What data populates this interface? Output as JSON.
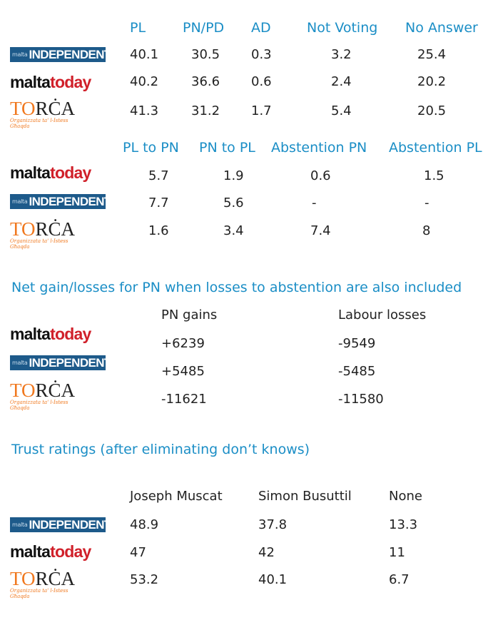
{
  "logos": {
    "independent": {
      "small": "malta",
      "big": "INDEPENDENT"
    },
    "maltatoday": {
      "part1": "malta",
      "part2": "today"
    },
    "torca": {
      "to": "TO",
      "rca": "RĊA",
      "tagline": "Organizzata ta' l-Istess Għaqda"
    }
  },
  "table1": {
    "headers": [
      "PL",
      "PN/PD",
      "AD",
      "Not Voting",
      "No Answer"
    ],
    "rows": [
      {
        "source": "independent",
        "values": [
          "40.1",
          "30.5",
          "0.3",
          "3.2",
          "25.4"
        ]
      },
      {
        "source": "maltatoday",
        "values": [
          "40.2",
          "36.6",
          "0.6",
          "2.4",
          "20.2"
        ]
      },
      {
        "source": "torca",
        "values": [
          "41.3",
          "31.2",
          "1.7",
          "5.4",
          "20.5"
        ]
      }
    ]
  },
  "table2": {
    "headers": [
      "PL to PN",
      "PN to PL",
      "Abstention PN",
      "Abstention PL"
    ],
    "rows": [
      {
        "source": "maltatoday",
        "values": [
          "5.7",
          "1.9",
          "0.6",
          "1.5"
        ]
      },
      {
        "source": "independent",
        "values": [
          "7.7",
          "5.6",
          "-",
          "-"
        ]
      },
      {
        "source": "torca",
        "values": [
          "1.6",
          "3.4",
          "7.4",
          "8"
        ]
      }
    ]
  },
  "table3": {
    "title": "Net gain/losses for PN when losses to abstention are also included",
    "headers": [
      "PN gains",
      "Labour losses"
    ],
    "rows": [
      {
        "source": "maltatoday",
        "values": [
          "+6239",
          "-9549"
        ]
      },
      {
        "source": "independent",
        "values": [
          "+5485",
          "-5485"
        ]
      },
      {
        "source": "torca",
        "values": [
          "-11621",
          "-11580"
        ]
      }
    ]
  },
  "table4": {
    "title": "Trust ratings (after eliminating don’t knows)",
    "headers": [
      "Joseph Muscat",
      "Simon Busuttil",
      "None"
    ],
    "rows": [
      {
        "source": "independent",
        "values": [
          "48.9",
          "37.8",
          "13.3"
        ]
      },
      {
        "source": "maltatoday",
        "values": [
          "47",
          "42",
          "11"
        ]
      },
      {
        "source": "torca",
        "values": [
          "53.2",
          "40.1",
          "6.7"
        ]
      }
    ]
  }
}
